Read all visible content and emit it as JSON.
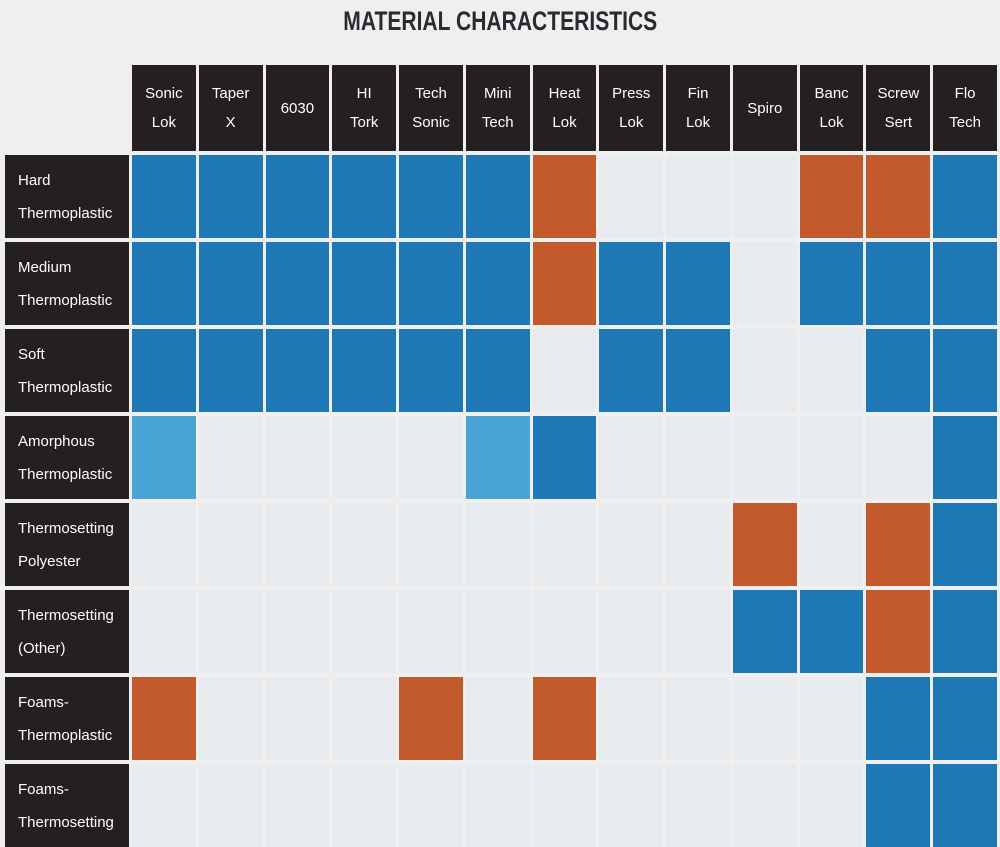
{
  "title": "MATERIAL CHARACTERISTICS",
  "colors": {
    "blue": "#1d78b5",
    "lightblue": "#4aa4d3",
    "orange": "#c25a2b",
    "empty": "#e8ebee",
    "header_bg": "#242021",
    "page_bg": "#f0eff0",
    "header_text": "#fdfdfd",
    "title_color": "#2b2a30"
  },
  "columns": [
    {
      "lines": [
        "Sonic",
        "Lok"
      ]
    },
    {
      "lines": [
        "Taper",
        "X"
      ]
    },
    {
      "lines": [
        "6030"
      ]
    },
    {
      "lines": [
        "HI",
        "Tork"
      ]
    },
    {
      "lines": [
        "Tech",
        "Sonic"
      ]
    },
    {
      "lines": [
        "Mini",
        "Tech"
      ]
    },
    {
      "lines": [
        "Heat",
        "Lok"
      ]
    },
    {
      "lines": [
        "Press",
        "Lok"
      ]
    },
    {
      "lines": [
        "Fin",
        "Lok"
      ]
    },
    {
      "lines": [
        "Spiro"
      ]
    },
    {
      "lines": [
        "Banc",
        "Lok"
      ]
    },
    {
      "lines": [
        "Screw",
        "Sert"
      ]
    },
    {
      "lines": [
        "Flo",
        "Tech"
      ]
    }
  ],
  "rows": [
    {
      "lines": [
        "Hard",
        "Thermoplastic"
      ],
      "cells": [
        "blue",
        "blue",
        "blue",
        "blue",
        "blue",
        "blue",
        "orange",
        "empty",
        "empty",
        "empty",
        "orange",
        "orange",
        "blue"
      ]
    },
    {
      "lines": [
        "Medium",
        "Thermoplastic"
      ],
      "cells": [
        "blue",
        "blue",
        "blue",
        "blue",
        "blue",
        "blue",
        "orange",
        "blue",
        "blue",
        "empty",
        "blue",
        "blue",
        "blue"
      ]
    },
    {
      "lines": [
        "Soft",
        "Thermoplastic"
      ],
      "cells": [
        "blue",
        "blue",
        "blue",
        "blue",
        "blue",
        "blue",
        "empty",
        "blue",
        "blue",
        "empty",
        "empty",
        "blue",
        "blue"
      ]
    },
    {
      "lines": [
        "Amorphous",
        "Thermoplastic"
      ],
      "cells": [
        "lightblue",
        "empty",
        "empty",
        "empty",
        "empty",
        "lightblue",
        "blue",
        "empty",
        "empty",
        "empty",
        "empty",
        "empty",
        "blue"
      ]
    },
    {
      "lines": [
        "Thermosetting",
        "Polyester"
      ],
      "cells": [
        "empty",
        "empty",
        "empty",
        "empty",
        "empty",
        "empty",
        "empty",
        "empty",
        "empty",
        "orange",
        "empty",
        "orange",
        "blue"
      ]
    },
    {
      "lines": [
        "Thermosetting",
        "(Other)"
      ],
      "cells": [
        "empty",
        "empty",
        "empty",
        "empty",
        "empty",
        "empty",
        "empty",
        "empty",
        "empty",
        "blue",
        "blue",
        "orange",
        "blue"
      ]
    },
    {
      "lines": [
        "Foams-",
        "Thermoplastic"
      ],
      "cells": [
        "orange",
        "empty",
        "empty",
        "empty",
        "orange",
        "empty",
        "orange",
        "empty",
        "empty",
        "empty",
        "empty",
        "blue",
        "blue"
      ]
    },
    {
      "lines": [
        "Foams-",
        "Thermosetting"
      ],
      "cells": [
        "empty",
        "empty",
        "empty",
        "empty",
        "empty",
        "empty",
        "empty",
        "empty",
        "empty",
        "empty",
        "empty",
        "blue",
        "blue"
      ]
    }
  ],
  "chart_data": {
    "type": "heatmap",
    "title": "MATERIAL CHARACTERISTICS",
    "x_labels": [
      "Sonic Lok",
      "Taper X",
      "6030",
      "HI Tork",
      "Tech Sonic",
      "Mini Tech",
      "Heat Lok",
      "Press Lok",
      "Fin Lok",
      "Spiro",
      "Banc Lok",
      "Screw Sert",
      "Flo Tech"
    ],
    "y_labels": [
      "Hard Thermoplastic",
      "Medium Thermoplastic",
      "Soft Thermoplastic",
      "Amorphous Thermoplastic",
      "Thermosetting Polyester",
      "Thermosetting (Other)",
      "Foams-Thermoplastic",
      "Foams-Thermosetting"
    ],
    "values": [
      [
        "blue",
        "blue",
        "blue",
        "blue",
        "blue",
        "blue",
        "orange",
        "empty",
        "empty",
        "empty",
        "orange",
        "orange",
        "blue"
      ],
      [
        "blue",
        "blue",
        "blue",
        "blue",
        "blue",
        "blue",
        "orange",
        "blue",
        "blue",
        "empty",
        "blue",
        "blue",
        "blue"
      ],
      [
        "blue",
        "blue",
        "blue",
        "blue",
        "blue",
        "blue",
        "empty",
        "blue",
        "blue",
        "empty",
        "empty",
        "blue",
        "blue"
      ],
      [
        "lightblue",
        "empty",
        "empty",
        "empty",
        "empty",
        "lightblue",
        "blue",
        "empty",
        "empty",
        "empty",
        "empty",
        "empty",
        "blue"
      ],
      [
        "empty",
        "empty",
        "empty",
        "empty",
        "empty",
        "empty",
        "empty",
        "empty",
        "empty",
        "orange",
        "empty",
        "orange",
        "blue"
      ],
      [
        "empty",
        "empty",
        "empty",
        "empty",
        "empty",
        "empty",
        "empty",
        "empty",
        "empty",
        "blue",
        "blue",
        "orange",
        "blue"
      ],
      [
        "orange",
        "empty",
        "empty",
        "empty",
        "orange",
        "empty",
        "orange",
        "empty",
        "empty",
        "empty",
        "empty",
        "blue",
        "blue"
      ],
      [
        "empty",
        "empty",
        "empty",
        "empty",
        "empty",
        "empty",
        "empty",
        "empty",
        "empty",
        "empty",
        "empty",
        "blue",
        "blue"
      ]
    ],
    "cell_color_map": {
      "blue": "#1d78b5",
      "lightblue": "#4aa4d3",
      "orange": "#c25a2b",
      "empty": "#e8ebee"
    },
    "legend": "none shown",
    "grid": "gaps between cells reveal light page background"
  }
}
